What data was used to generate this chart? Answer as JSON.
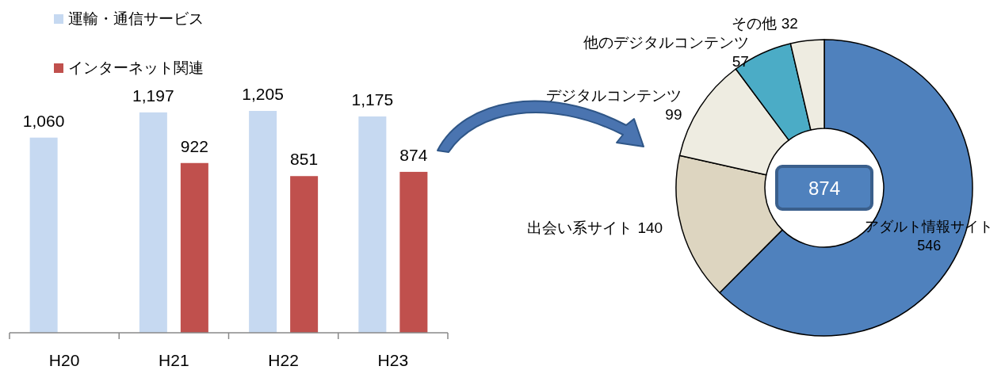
{
  "chart_data": [
    {
      "type": "bar",
      "categories": [
        "H20",
        "H21",
        "H22",
        "H23"
      ],
      "series": [
        {
          "name": "運輸・通信サービス",
          "color": "#c6d9f1",
          "values": [
            1060,
            1197,
            1205,
            1175
          ],
          "value_labels": [
            "1,060",
            "1,197",
            "1,205",
            "1,175"
          ]
        },
        {
          "name": "インターネット関連",
          "color": "#c0504d",
          "values": [
            null,
            922,
            851,
            874
          ],
          "value_labels": [
            null,
            "922",
            "851",
            "874"
          ]
        }
      ],
      "legend": "top left"
    },
    {
      "type": "donut",
      "categories": [
        "アダルト情報サイト",
        "出会い系サイト",
        "デジタルコンテンツ",
        "他のデジタルコンテンツ",
        "その他"
      ],
      "values": [
        546,
        140,
        99,
        57,
        32
      ],
      "colors": [
        "#4f81bd",
        "#ddd5c0",
        "#eeece1",
        "#4bacc6",
        "#eeece1"
      ],
      "data_labels": true,
      "annotations": [
        "874"
      ]
    }
  ]
}
